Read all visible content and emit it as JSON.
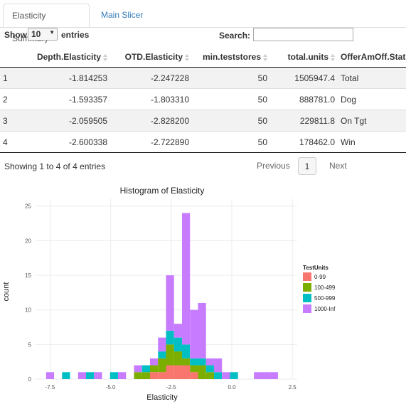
{
  "tabs": [
    {
      "label": "Elasticity Summary",
      "active": true
    },
    {
      "label": "Main Slicer",
      "active": false
    }
  ],
  "controls": {
    "show_label": "Show",
    "length_value": "10",
    "entries_label": "entries",
    "search_label": "Search:",
    "search_value": ""
  },
  "table": {
    "columns": [
      "",
      "Depth.Elasticity",
      "OTD.Elasticity",
      "min.teststores",
      "total.units",
      "OfferAmOff.Status"
    ],
    "rows": [
      [
        "1",
        "-1.814253",
        "-2.247228",
        "50",
        "1505947.4",
        "Total"
      ],
      [
        "2",
        "-1.593357",
        "-1.803310",
        "50",
        "888781.0",
        "Dog"
      ],
      [
        "3",
        "-2.059505",
        "-2.828200",
        "50",
        "229811.8",
        "On Tgt"
      ],
      [
        "4",
        "-2.600338",
        "-2.722890",
        "50",
        "178462.0",
        "Win"
      ]
    ]
  },
  "pagination": {
    "info": "Showing 1 to 4 of 4 entries",
    "previous": "Previous",
    "current": "1",
    "next": "Next"
  },
  "chart_data": {
    "type": "bar",
    "title": "Histogram of Elasticity",
    "xlabel": "Elasticity",
    "ylabel": "count",
    "xlim": [
      -8.1,
      2.7
    ],
    "ylim": [
      0,
      26
    ],
    "xticks": [
      "-7.5",
      "-5.0",
      "-2.5",
      "0.0",
      "2.5"
    ],
    "yticks": [
      "0",
      "5",
      "10",
      "15",
      "20",
      "25"
    ],
    "stacked": true,
    "grid": true,
    "legend_position": "right",
    "legend_title": "TestUnits",
    "binwidth": 0.33,
    "categories": [
      -7.5,
      -7.17,
      -6.84,
      -6.51,
      -6.18,
      -5.85,
      -5.52,
      -5.19,
      -4.86,
      -4.53,
      -4.2,
      -3.87,
      -3.54,
      -3.21,
      -2.88,
      -2.55,
      -2.22,
      -1.89,
      -1.56,
      -1.23,
      -0.9,
      -0.57,
      -0.24,
      0.09,
      0.42,
      0.75,
      1.08,
      1.41,
      1.74
    ],
    "series": [
      {
        "name": "0-99",
        "color": "#f8766d",
        "values": [
          0,
          0,
          0,
          0,
          0,
          0,
          0,
          0,
          0,
          0,
          0,
          0,
          0,
          1,
          1,
          2,
          2,
          2,
          1,
          0,
          0,
          0,
          0,
          0,
          0,
          0,
          0,
          0,
          0
        ]
      },
      {
        "name": "100-499",
        "color": "#7cae00",
        "values": [
          0,
          0,
          0,
          0,
          0,
          0,
          0,
          0,
          0,
          0,
          0,
          1,
          1,
          1,
          2,
          3,
          2,
          1,
          1,
          2,
          1,
          0,
          0,
          0,
          0,
          0,
          0,
          0,
          0
        ]
      },
      {
        "name": "500-999",
        "color": "#00bfc4",
        "values": [
          0,
          0,
          1,
          0,
          0,
          1,
          0,
          0,
          1,
          0,
          0,
          0,
          1,
          0,
          1,
          2,
          2,
          2,
          1,
          1,
          1,
          1,
          0,
          1,
          0,
          0,
          0,
          0,
          0
        ]
      },
      {
        "name": "1000-Inf",
        "color": "#c77cff",
        "values": [
          1,
          0,
          0,
          0,
          1,
          0,
          1,
          0,
          0,
          1,
          0,
          1,
          0,
          1,
          2,
          8,
          2,
          19,
          7,
          8,
          1,
          2,
          1,
          0,
          0,
          0,
          1,
          1,
          1
        ]
      }
    ]
  }
}
